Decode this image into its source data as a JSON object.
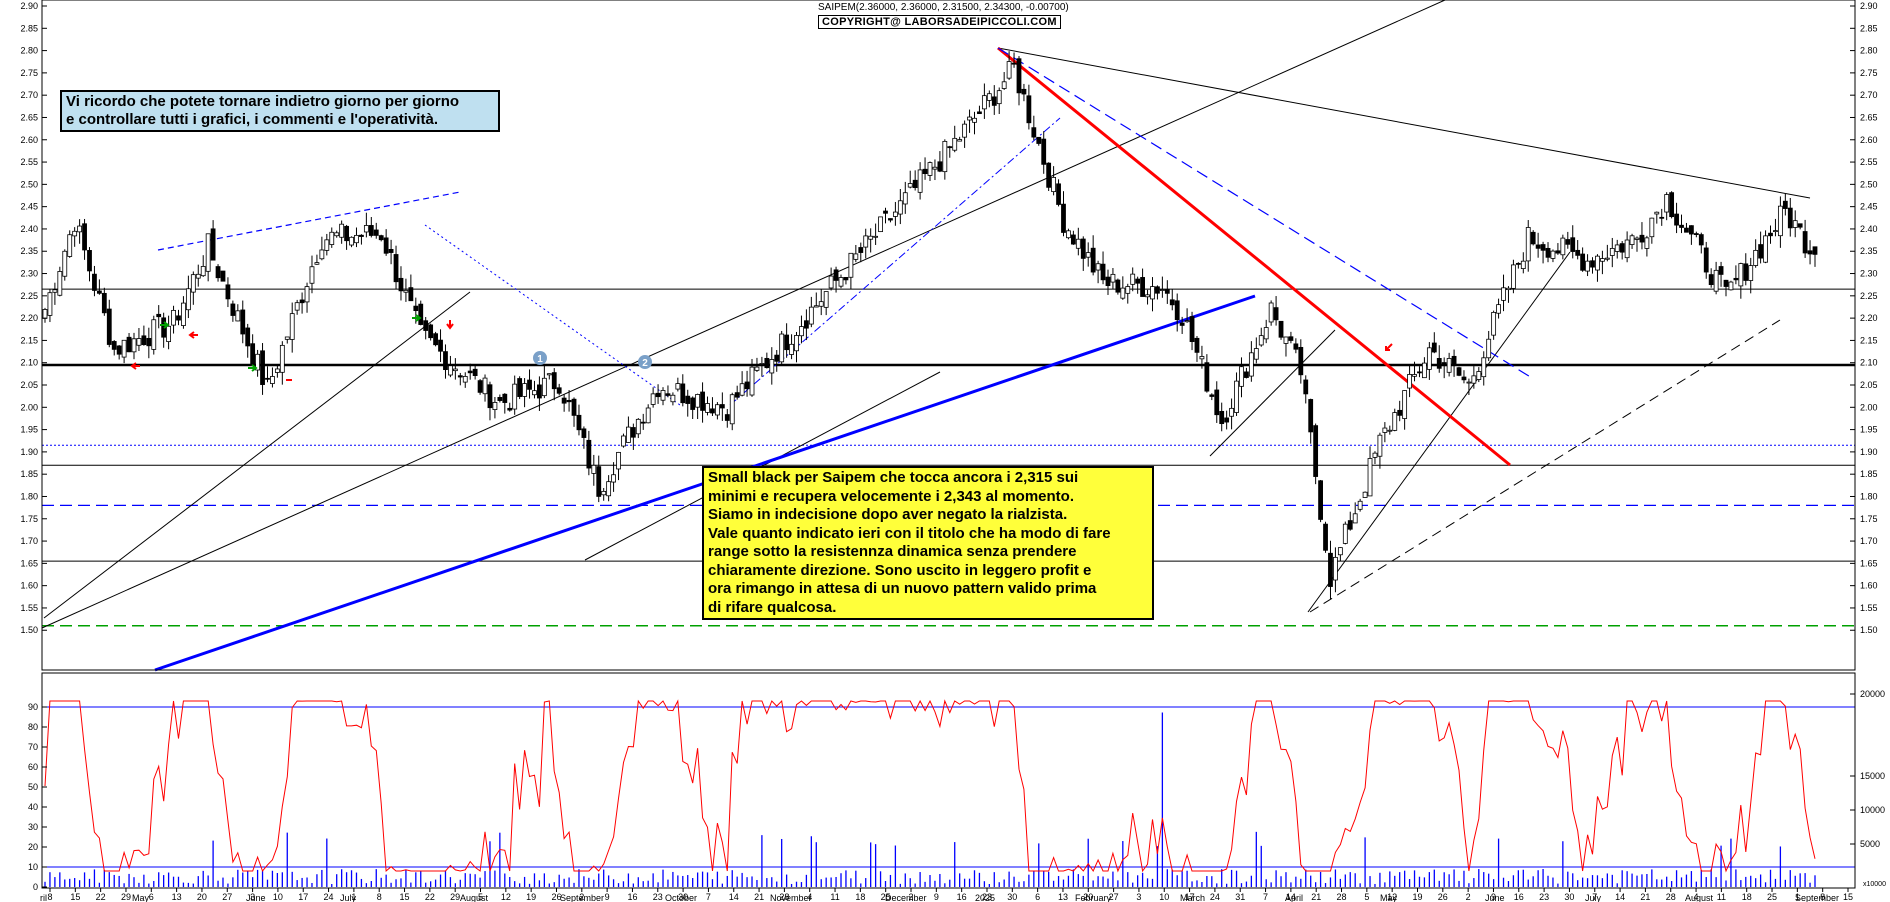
{
  "header": {
    "title": "SAIPEM(2.36000, 2.36000, 2.31500, 2.34300, -0.00700)",
    "copyright": "COPYRIGHT@ LABORSADEIPICCOLI.COM"
  },
  "note_box": {
    "text": "Vi ricordo che potete tornare indietro giorno per giorno\ne controllare tutti i grafici, i commenti e l'operatività."
  },
  "comment_box": {
    "text": "Small black per Saipem che tocca ancora i 2,315 sui\nminimi e recupera velocemente i 2,343 al momento.\nSiamo in indecisione dopo aver negato la rialzista.\nVale quanto indicato ieri con il titolo che ha modo di fare\nrange sotto la resistennza dinamica senza prendere\nchiaramente direzione. Sono uscito in leggero profit e\nora rimango in attesa di un nuovo pattern valido prima\ndi rifare qualcosa."
  },
  "badges": [
    "1",
    "2"
  ],
  "chart_data": {
    "type": "candlestick",
    "price_axis": {
      "ylim": [
        1.44,
        2.9
      ],
      "ticks": [
        "1.50",
        "1.55",
        "1.60",
        "1.65",
        "1.70",
        "1.75",
        "1.80",
        "1.85",
        "1.90",
        "1.95",
        "2.00",
        "2.05",
        "2.10",
        "2.15",
        "2.20",
        "2.25",
        "2.30",
        "2.35",
        "2.40",
        "2.45",
        "2.50",
        "2.55",
        "2.60",
        "2.65",
        "2.70",
        "2.75",
        "2.80",
        "2.85",
        "2.90"
      ]
    },
    "oscillator_axis": {
      "ylim": [
        0,
        100
      ],
      "ticks": [
        "0",
        "10",
        "20",
        "30",
        "40",
        "50",
        "60",
        "70",
        "80",
        "90"
      ]
    },
    "volume_axis": {
      "ticks": [
        "5000",
        "10000",
        "15000",
        "20000"
      ],
      "unit_label": "x10000"
    },
    "x_day_labels": [
      "8",
      "15",
      "22",
      "29",
      "6",
      "13",
      "20",
      "27",
      "3",
      "10",
      "17",
      "24",
      "1",
      "8",
      "15",
      "22",
      "29",
      "5",
      "12",
      "19",
      "26",
      "2",
      "9",
      "16",
      "23",
      "30",
      "7",
      "14",
      "21",
      "28",
      "4",
      "11",
      "18",
      "25",
      "2",
      "9",
      "16",
      "23",
      "30",
      "6",
      "13",
      "20",
      "27",
      "3",
      "10",
      "17",
      "24",
      "31",
      "7",
      "14",
      "21",
      "28",
      "5",
      "12",
      "19",
      "26",
      "2",
      "9",
      "16",
      "23",
      "30",
      "7",
      "14",
      "21",
      "28",
      "4",
      "11",
      "18",
      "25",
      "1",
      "8",
      "15"
    ],
    "x_month_labels": [
      "ril",
      "May",
      "June",
      "July",
      "August",
      "September",
      "October",
      "November",
      "December",
      "2025",
      "February",
      "March",
      "April",
      "May",
      "June",
      "July",
      "August",
      "September"
    ],
    "colors": {
      "candle_up": "#ffffff",
      "candle_down": "#000000",
      "oscillator": "#ff0000",
      "volume": "#0000ff",
      "trend_red": "#ff0000",
      "trend_blue": "#0000ff",
      "support_green": "#00a000"
    },
    "horizontal_levels": [
      {
        "value": 2.265,
        "style": "thin-black"
      },
      {
        "value": 2.095,
        "style": "thick-black"
      },
      {
        "value": 1.915,
        "style": "dotted-blue"
      },
      {
        "value": 1.87,
        "style": "thin-black"
      },
      {
        "value": 1.78,
        "style": "dashed-blue"
      },
      {
        "value": 1.655,
        "style": "thin-black"
      },
      {
        "value": 1.51,
        "style": "dashed-green"
      }
    ],
    "oscillator_levels": [
      90,
      10
    ],
    "series_segments_close": [
      {
        "from": 0,
        "to": 6,
        "start": 2.22,
        "end": 2.42
      },
      {
        "from": 6,
        "to": 14,
        "start": 2.42,
        "end": 2.13
      },
      {
        "from": 14,
        "to": 26,
        "start": 2.13,
        "end": 2.19
      },
      {
        "from": 26,
        "to": 33,
        "start": 2.19,
        "end": 2.36
      },
      {
        "from": 33,
        "to": 45,
        "start": 2.36,
        "end": 2.04
      },
      {
        "from": 45,
        "to": 56,
        "start": 2.04,
        "end": 2.38
      },
      {
        "from": 56,
        "to": 68,
        "start": 2.38,
        "end": 2.39
      },
      {
        "from": 68,
        "to": 76,
        "start": 2.39,
        "end": 2.16
      },
      {
        "from": 76,
        "to": 92,
        "start": 2.16,
        "end": 2.01
      },
      {
        "from": 92,
        "to": 104,
        "start": 2.01,
        "end": 2.06
      },
      {
        "from": 104,
        "to": 112,
        "start": 2.06,
        "end": 1.82
      },
      {
        "from": 112,
        "to": 124,
        "start": 1.82,
        "end": 2.05
      },
      {
        "from": 124,
        "to": 138,
        "start": 2.05,
        "end": 2.0
      },
      {
        "from": 138,
        "to": 152,
        "start": 2.0,
        "end": 2.18
      },
      {
        "from": 152,
        "to": 166,
        "start": 2.18,
        "end": 2.36
      },
      {
        "from": 166,
        "to": 186,
        "start": 2.36,
        "end": 2.62
      },
      {
        "from": 186,
        "to": 196,
        "start": 2.62,
        "end": 2.76
      },
      {
        "from": 196,
        "to": 206,
        "start": 2.76,
        "end": 2.42
      },
      {
        "from": 206,
        "to": 214,
        "start": 2.42,
        "end": 2.28
      },
      {
        "from": 214,
        "to": 226,
        "start": 2.28,
        "end": 2.27
      },
      {
        "from": 226,
        "to": 230,
        "start": 2.27,
        "end": 2.21
      },
      {
        "from": 230,
        "to": 238,
        "start": 2.21,
        "end": 1.97
      },
      {
        "from": 238,
        "to": 248,
        "start": 1.97,
        "end": 2.22
      },
      {
        "from": 248,
        "to": 254,
        "start": 2.22,
        "end": 2.08
      },
      {
        "from": 254,
        "to": 260,
        "start": 2.08,
        "end": 1.62
      },
      {
        "from": 260,
        "to": 270,
        "start": 1.62,
        "end": 1.92
      },
      {
        "from": 270,
        "to": 280,
        "start": 1.92,
        "end": 2.13
      },
      {
        "from": 280,
        "to": 288,
        "start": 2.13,
        "end": 2.05
      },
      {
        "from": 288,
        "to": 300,
        "start": 2.05,
        "end": 2.38
      },
      {
        "from": 300,
        "to": 312,
        "start": 2.38,
        "end": 2.33
      },
      {
        "from": 312,
        "to": 322,
        "start": 2.33,
        "end": 2.38
      },
      {
        "from": 322,
        "to": 328,
        "start": 2.38,
        "end": 2.47
      },
      {
        "from": 328,
        "to": 340,
        "start": 2.47,
        "end": 2.25
      },
      {
        "from": 340,
        "to": 352,
        "start": 2.25,
        "end": 2.44
      },
      {
        "from": 352,
        "to": 358,
        "start": 2.44,
        "end": 2.343
      }
    ],
    "last_candle": {
      "open": 2.36,
      "high": 2.36,
      "low": 2.315,
      "close": 2.343
    }
  }
}
